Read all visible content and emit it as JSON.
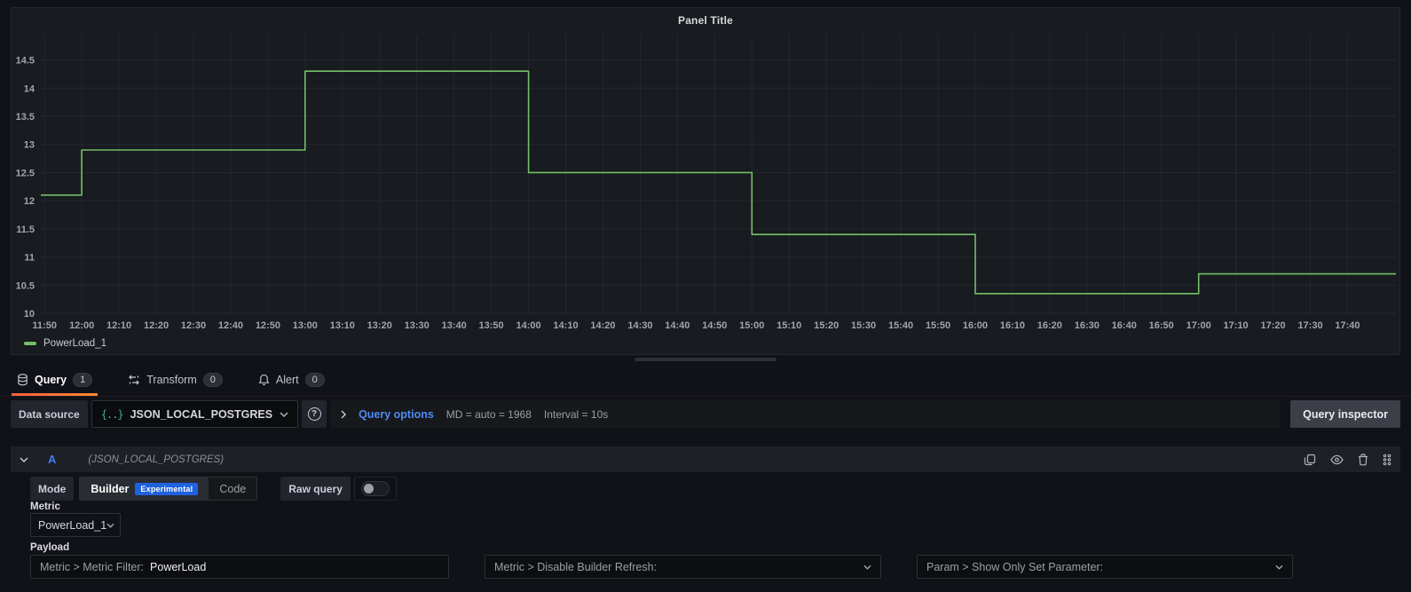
{
  "panel": {
    "title": "Panel Title"
  },
  "chart_data": {
    "type": "line",
    "line_mode": "step-after",
    "title": "Panel Title",
    "xlabel": "",
    "ylabel": "",
    "grid": true,
    "legend_position": "bottom-left",
    "legend": [
      {
        "name": "PowerLoad_1",
        "color": "#73bf69"
      }
    ],
    "y_ticks": [
      10,
      10.5,
      11,
      11.5,
      12,
      12.5,
      13,
      13.5,
      14,
      14.5
    ],
    "ylim": [
      10,
      14.95
    ],
    "x_tick_labels": [
      "11:50",
      "12:00",
      "12:10",
      "12:20",
      "12:30",
      "12:40",
      "12:50",
      "13:00",
      "13:10",
      "13:20",
      "13:30",
      "13:40",
      "13:50",
      "14:00",
      "14:10",
      "14:20",
      "14:30",
      "14:40",
      "14:50",
      "15:00",
      "15:10",
      "15:20",
      "15:30",
      "15:40",
      "15:50",
      "16:00",
      "16:10",
      "16:20",
      "16:30",
      "16:40",
      "16:50",
      "17:00",
      "17:10",
      "17:20",
      "17:30",
      "17:40"
    ],
    "x_tick_start_minute": 710,
    "x_tick_step_minute": 10,
    "xlim_minutes": [
      709,
      1073
    ],
    "series": [
      {
        "name": "PowerLoad_1",
        "color": "#73bf69",
        "points": [
          {
            "time": "11:49",
            "minutes": 709,
            "value": 12.1
          },
          {
            "time": "12:00",
            "minutes": 720,
            "value": 12.9
          },
          {
            "time": "13:00",
            "minutes": 780,
            "value": 14.3
          },
          {
            "time": "14:00",
            "minutes": 840,
            "value": 12.5
          },
          {
            "time": "15:00",
            "minutes": 900,
            "value": 11.4
          },
          {
            "time": "16:00",
            "minutes": 960,
            "value": 10.35
          },
          {
            "time": "17:00",
            "minutes": 1020,
            "value": 10.7
          }
        ],
        "end_minute": 1073
      }
    ]
  },
  "editor": {
    "tabs": [
      {
        "label": "Query",
        "count": "1"
      },
      {
        "label": "Transform",
        "count": "0"
      },
      {
        "label": "Alert",
        "count": "0"
      }
    ],
    "datasource_row": {
      "label": "Data source",
      "value": "JSON_LOCAL_POSTGRES",
      "datasource_icon": "{..}",
      "help_glyph": "?",
      "options_label": "Query options",
      "options_md": "MD = auto = 1968",
      "options_interval": "Interval = 10s",
      "inspector_button": "Query inspector"
    },
    "query_row": {
      "ref_id": "A",
      "datasource_hint": "(JSON_LOCAL_POSTGRES)",
      "mode_label": "Mode",
      "builder_label": "Builder",
      "builder_badge": "Experimental",
      "code_label": "Code",
      "raw_query_label": "Raw query",
      "metric_label": "Metric",
      "metric_value": "PowerLoad_1",
      "payload_label": "Payload",
      "payload_fields": [
        {
          "label": "Metric > Metric Filter:",
          "value": "PowerLoad"
        },
        {
          "label": "Metric > Disable Builder Refresh:",
          "value": ""
        },
        {
          "label": "Param > Show Only Set Parameter:",
          "value": ""
        }
      ]
    }
  },
  "colors": {
    "page_bg": "#111217",
    "panel_bg": "#181b1f",
    "series_green": "#73bf69",
    "grid": "rgba(204,204,220,0.07)",
    "axis_text": "#a2a4aa",
    "link_blue": "#4d8bf5",
    "ref_blue": "#447ef2",
    "badge_blue": "#1f62e0",
    "tab_underline_from": "#f55f3e",
    "tab_underline_to": "#ff8833"
  }
}
